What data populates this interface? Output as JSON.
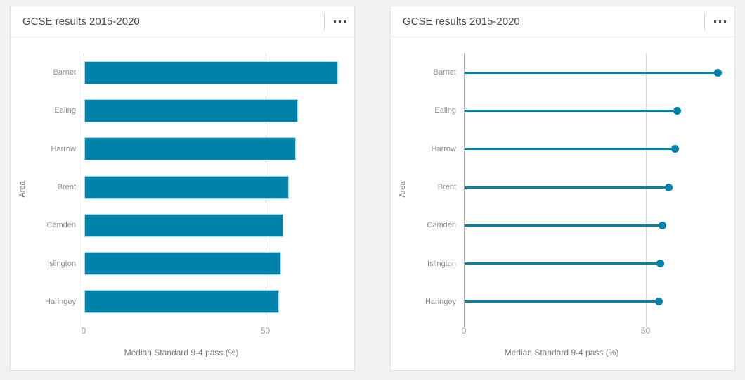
{
  "colors": {
    "accent": "#0082ab",
    "accent_outline": "#a9d9e9",
    "page_bg": "#f0f1f2",
    "card_bg": "#ffffff",
    "card_border": "#dfe1e2",
    "axis_line": "#b2b2b2",
    "gridline": "#d9d9d9",
    "title_text": "#4c4c4c",
    "category_text": "#8c8c8c",
    "tick_text": "#9e9e9e",
    "axis_title_text": "#6e6e6e"
  },
  "cards": [
    {
      "title": "GCSE results 2015-2020",
      "menu_icon": "ellipsis"
    },
    {
      "title": "GCSE results 2015-2020",
      "menu_icon": "ellipsis"
    }
  ],
  "chart_data": [
    {
      "type": "bar",
      "style": "horizontal-bar",
      "title": "GCSE results 2015-2020",
      "categories": [
        "Barnet",
        "Ealing",
        "Harrow",
        "Brent",
        "Camden",
        "Islington",
        "Haringey"
      ],
      "values": [
        69.9,
        58.8,
        58.2,
        56.3,
        54.7,
        54.1,
        53.6
      ],
      "xlabel": "Median Standard 9-4 pass (%)",
      "ylabel": "Area",
      "xlim": [
        0,
        70
      ],
      "xticks": [
        0,
        50
      ],
      "grid": "vertical-at-ticks-only",
      "legend": "none",
      "series_color": "#0082ab"
    },
    {
      "type": "scatter",
      "style": "lollipop",
      "title": "GCSE results 2015-2020",
      "categories": [
        "Barnet",
        "Ealing",
        "Harrow",
        "Brent",
        "Camden",
        "Islington",
        "Haringey"
      ],
      "values": [
        69.9,
        58.8,
        58.2,
        56.3,
        54.7,
        54.1,
        53.6
      ],
      "xlabel": "Median Standard 9-4 pass (%)",
      "ylabel": "Area",
      "xlim": [
        0,
        70
      ],
      "xticks": [
        0,
        50
      ],
      "grid": "vertical-at-ticks-only",
      "legend": "none",
      "series_color": "#0082ab"
    }
  ]
}
